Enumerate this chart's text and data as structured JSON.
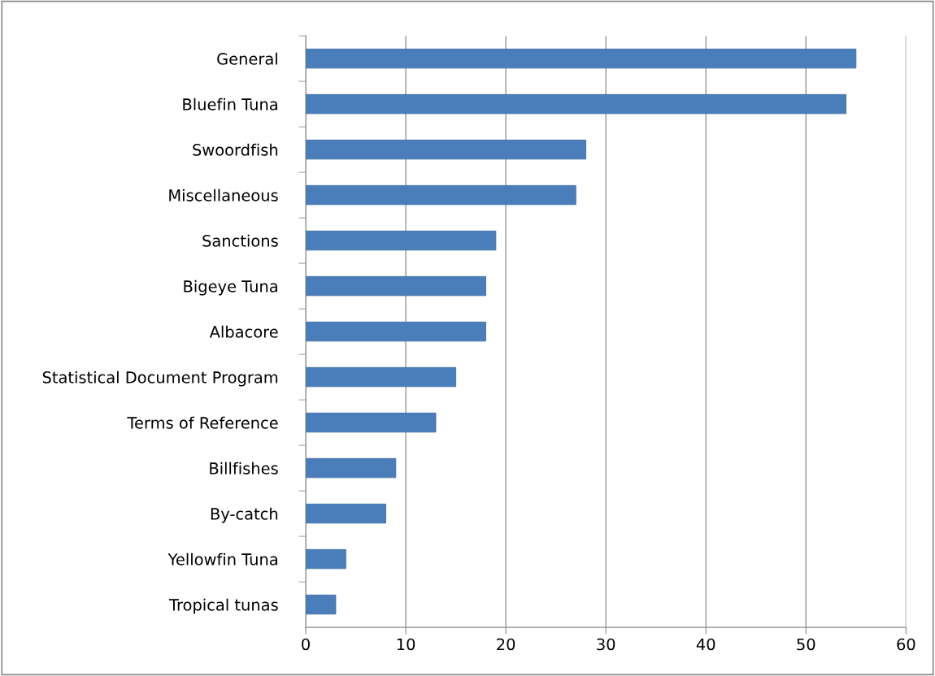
{
  "chart_data": {
    "type": "bar",
    "orientation": "horizontal",
    "categories": [
      "General",
      "Bluefin Tuna",
      "Swoordfish",
      "Miscellaneous",
      "Sanctions",
      "Bigeye Tuna",
      "Albacore",
      "Statistical Document Program",
      "Terms of Reference",
      "Billfishes",
      "By-catch",
      "Yellowfin Tuna",
      "Tropical tunas"
    ],
    "values": [
      55,
      54,
      28,
      27,
      19,
      18,
      18,
      15,
      13,
      9,
      8,
      4,
      3
    ],
    "color": "#4a7ebb",
    "xlim": [
      0,
      60
    ],
    "xticks": [
      0,
      10,
      20,
      30,
      40,
      50,
      60
    ],
    "grid": "x",
    "legend": false
  }
}
